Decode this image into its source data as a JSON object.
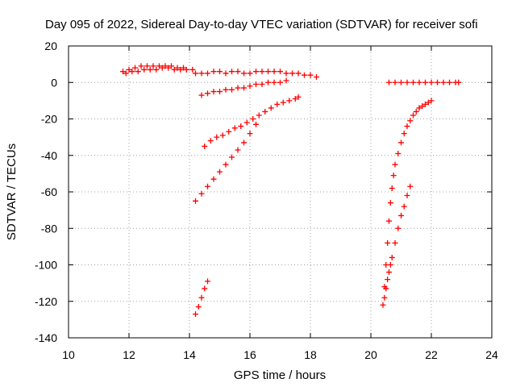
{
  "chart_data": {
    "type": "scatter",
    "title": "Day 095 of 2022, Sidereal Day-to-day VTEC variation (SDTVAR) for receiver sofi",
    "xlabel": "GPS time / hours",
    "ylabel": "SDTVAR / TECUs",
    "xlim": [
      10,
      24
    ],
    "ylim": [
      -140,
      20
    ],
    "xticks": [
      "10",
      "12",
      "14",
      "16",
      "18",
      "20",
      "22",
      "24"
    ],
    "yticks": [
      "20",
      "0",
      "-20",
      "-40",
      "-60",
      "-80",
      "-100",
      "-120",
      "-140"
    ],
    "grid": true,
    "marker_color": "#ff0000",
    "series": [
      {
        "x": [
          11.8,
          12.0,
          12.2,
          12.4,
          12.6,
          12.8,
          13.0,
          13.2,
          13.4,
          13.6,
          13.8,
          14.1
        ],
        "y": [
          6,
          7,
          8,
          9,
          9,
          9,
          9,
          9,
          9,
          8,
          8,
          7
        ]
      },
      {
        "x": [
          11.9,
          12.1,
          12.3,
          12.5,
          12.7,
          12.9,
          13.1,
          13.3,
          13.5,
          13.7,
          13.9
        ],
        "y": [
          5,
          6,
          6,
          7,
          7,
          7,
          8,
          8,
          7,
          7,
          7
        ]
      },
      {
        "x": [
          14.2,
          14.4,
          14.6
        ],
        "y": [
          5,
          5,
          5
        ]
      },
      {
        "x": [
          14.8,
          15.0,
          15.2,
          15.4,
          15.6,
          15.8,
          16.0,
          16.2,
          16.4,
          16.6,
          16.8,
          17.0,
          17.2,
          17.4,
          17.6,
          17.8,
          18.0,
          18.2
        ],
        "y": [
          6,
          6,
          5,
          6,
          6,
          5,
          5,
          6,
          6,
          6,
          6,
          6,
          5,
          5,
          5,
          4,
          4,
          3
        ]
      },
      {
        "x": [
          14.4,
          14.6,
          14.8,
          15.0,
          15.2,
          15.4,
          15.6,
          15.8,
          16.0,
          16.2,
          16.4,
          16.6,
          16.8,
          17.0,
          17.2
        ],
        "y": [
          -7,
          -6,
          -5,
          -5,
          -4,
          -4,
          -3,
          -3,
          -2,
          -1,
          -1,
          0,
          0,
          0,
          1
        ]
      },
      {
        "x": [
          14.5,
          14.7,
          14.9,
          15.1,
          15.3,
          15.5,
          15.7,
          15.9,
          16.1,
          16.3,
          16.5,
          16.7,
          16.9,
          17.1,
          17.3,
          17.5,
          17.6
        ],
        "y": [
          -35,
          -32,
          -30,
          -29,
          -27,
          -25,
          -24,
          -22,
          -20,
          -18,
          -16,
          -14,
          -12,
          -11,
          -10,
          -9,
          -8
        ]
      },
      {
        "x": [
          14.2,
          14.4,
          14.6,
          14.8,
          15.0,
          15.2,
          15.4,
          15.6,
          15.8,
          16.0,
          16.2
        ],
        "y": [
          -65,
          -61,
          -57,
          -53,
          -49,
          -45,
          -41,
          -37,
          -33,
          -28,
          -23
        ]
      },
      {
        "x": [
          14.2,
          14.3,
          14.4,
          14.5,
          14.6
        ],
        "y": [
          -127,
          -123,
          -118,
          -113,
          -109
        ]
      },
      {
        "x": [
          20.6,
          20.8,
          21.0,
          21.2,
          21.4,
          21.6,
          21.8,
          22.0,
          22.2,
          22.4,
          22.6,
          22.8,
          22.9
        ],
        "y": [
          0,
          0,
          0,
          0,
          0,
          0,
          0,
          0,
          0,
          0,
          0,
          0,
          0
        ]
      },
      {
        "x": [
          20.4,
          20.45,
          20.5,
          20.55,
          20.6,
          20.65,
          20.7,
          20.75,
          20.8,
          20.9,
          21.0,
          21.1,
          21.2,
          21.3,
          21.4,
          21.5,
          21.6,
          21.7,
          21.8,
          21.9,
          22.0
        ],
        "y": [
          -122,
          -112,
          -100,
          -88,
          -76,
          -66,
          -58,
          -51,
          -45,
          -39,
          -33,
          -28,
          -24,
          -21,
          -18,
          -16,
          -14,
          -13,
          -12,
          -11,
          -10
        ]
      },
      {
        "x": [
          20.45,
          20.5,
          20.55,
          20.6,
          20.65,
          20.7,
          20.8,
          20.9,
          21.0,
          21.1,
          21.2,
          21.3
        ],
        "y": [
          -118,
          -113,
          -108,
          -104,
          -100,
          -96,
          -88,
          -80,
          -73,
          -68,
          -62,
          -57
        ]
      }
    ]
  }
}
